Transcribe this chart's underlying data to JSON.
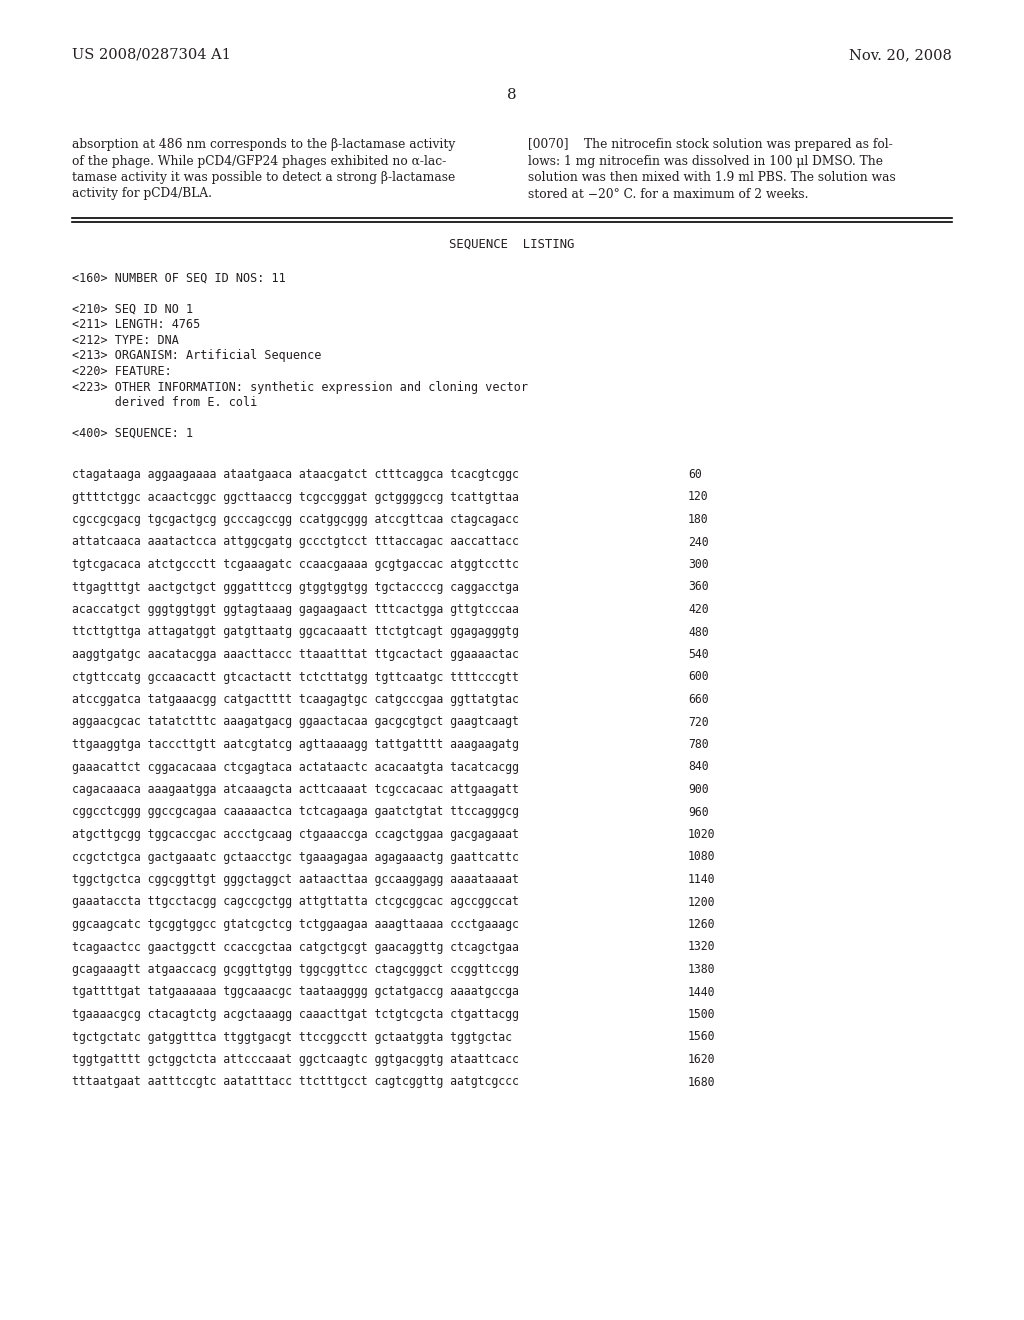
{
  "page_number": "8",
  "header_left": "US 2008/0287304 A1",
  "header_right": "Nov. 20, 2008",
  "background_color": "#ffffff",
  "text_color": "#231f20",
  "body_left_col": [
    "absorption at 486 nm corresponds to the β-lactamase activity",
    "of the phage. While pCD4/GFP24 phages exhibited no α-lac-",
    "tamase activity it was possible to detect a strong β-lactamase",
    "activity for pCD4/BLA."
  ],
  "body_right_col": [
    "[0070]    The nitrocefin stock solution was prepared as fol-",
    "lows: 1 mg nitrocefin was dissolved in 100 μl DMSO. The",
    "solution was then mixed with 1.9 ml PBS. The solution was",
    "stored at −20° C. for a maximum of 2 weeks."
  ],
  "seq_listing_title": "SEQUENCE  LISTING",
  "seq_metadata": [
    "<160> NUMBER OF SEQ ID NOS: 11",
    "",
    "<210> SEQ ID NO 1",
    "<211> LENGTH: 4765",
    "<212> TYPE: DNA",
    "<213> ORGANISM: Artificial Sequence",
    "<220> FEATURE:",
    "<223> OTHER INFORMATION: synthetic expression and cloning vector",
    "      derived from E. coli",
    "",
    "<400> SEQUENCE: 1"
  ],
  "sequences": [
    [
      "ctagataaga aggaagaaaa ataatgaaca ataacgatct ctttcaggca tcacgtcggc",
      "60"
    ],
    [
      "gttttctggc acaactcggc ggcttaaccg tcgccgggat gctggggccg tcattgttaa",
      "120"
    ],
    [
      "cgccgcgacg tgcgactgcg gcccagccgg ccatggcggg atccgttcaa ctagcagacc",
      "180"
    ],
    [
      "attatcaaca aaatactcca attggcgatg gccctgtcct tttaccagac aaccattacc",
      "240"
    ],
    [
      "tgtcgacaca atctgccctt tcgaaagatc ccaacgaaaa gcgtgaccac atggtccttc",
      "300"
    ],
    [
      "ttgagtttgt aactgctgct gggatttccg gtggtggtgg tgctaccccg caggacctga",
      "360"
    ],
    [
      "acaccatgct gggtggtggt ggtagtaaag gagaagaact tttcactgga gttgtcccaa",
      "420"
    ],
    [
      "ttcttgttga attagatggt gatgttaatg ggcacaaatt ttctgtcagt ggagagggtg",
      "480"
    ],
    [
      "aaggtgatgc aacatacgga aaacttaccc ttaaatttat ttgcactact ggaaaactac",
      "540"
    ],
    [
      "ctgttccatg gccaacactt gtcactactt tctcttatgg tgttcaatgc ttttcccgtt",
      "600"
    ],
    [
      "atccggatca tatgaaacgg catgactttt tcaagagtgc catgcccgaa ggttatgtac",
      "660"
    ],
    [
      "aggaacgcac tatatctttc aaagatgacg ggaactacaa gacgcgtgct gaagtcaagt",
      "720"
    ],
    [
      "ttgaaggtga tacccttgtt aatcgtatcg agttaaaagg tattgatttt aaagaagatg",
      "780"
    ],
    [
      "gaaacattct cggacacaaa ctcgagtaca actataactc acacaatgta tacatcacgg",
      "840"
    ],
    [
      "cagacaaaca aaagaatgga atcaaagcta acttcaaaat tcgccacaac attgaagatt",
      "900"
    ],
    [
      "cggcctcggg ggccgcagaa caaaaactca tctcagaaga gaatctgtat ttccagggcg",
      "960"
    ],
    [
      "atgcttgcgg tggcaccgac accctgcaag ctgaaaccga ccagctggaa gacgagaaat",
      "1020"
    ],
    [
      "ccgctctgca gactgaaatc gctaacctgc tgaaagagaa agagaaactg gaattcattc",
      "1080"
    ],
    [
      "tggctgctca cggcggttgt gggctaggct aataacttaa gccaaggagg aaaataaaat",
      "1140"
    ],
    [
      "gaaataccta ttgcctacgg cagccgctgg attgttatta ctcgcggcac agccggccat",
      "1200"
    ],
    [
      "ggcaagcatc tgcggtggcc gtatcgctcg tctggaagaa aaagttaaaa ccctgaaagc",
      "1260"
    ],
    [
      "tcagaactcc gaactggctt ccaccgctaa catgctgcgt gaacaggttg ctcagctgaa",
      "1320"
    ],
    [
      "gcagaaagtt atgaaccacg gcggttgtgg tggcggttcc ctagcgggct ccggttccgg",
      "1380"
    ],
    [
      "tgattttgat tatgaaaaaa tggcaaacgc taataagggg gctatgaccg aaaatgccga",
      "1440"
    ],
    [
      "tgaaaacgcg ctacagtctg acgctaaagg caaacttgat tctgtcgcta ctgattacgg",
      "1500"
    ],
    [
      "tgctgctatc gatggtttca ttggtgacgt ttccggcctt gctaatggta tggtgctac",
      "1560"
    ],
    [
      "tggtgatttt gctggctcta attcccaaat ggctcaagtc ggtgacggtg ataattcacc",
      "1620"
    ],
    [
      "tttaatgaat aatttccgtc aatatttacc ttctttgcct cagtcggttg aatgtcgccc",
      "1680"
    ]
  ]
}
